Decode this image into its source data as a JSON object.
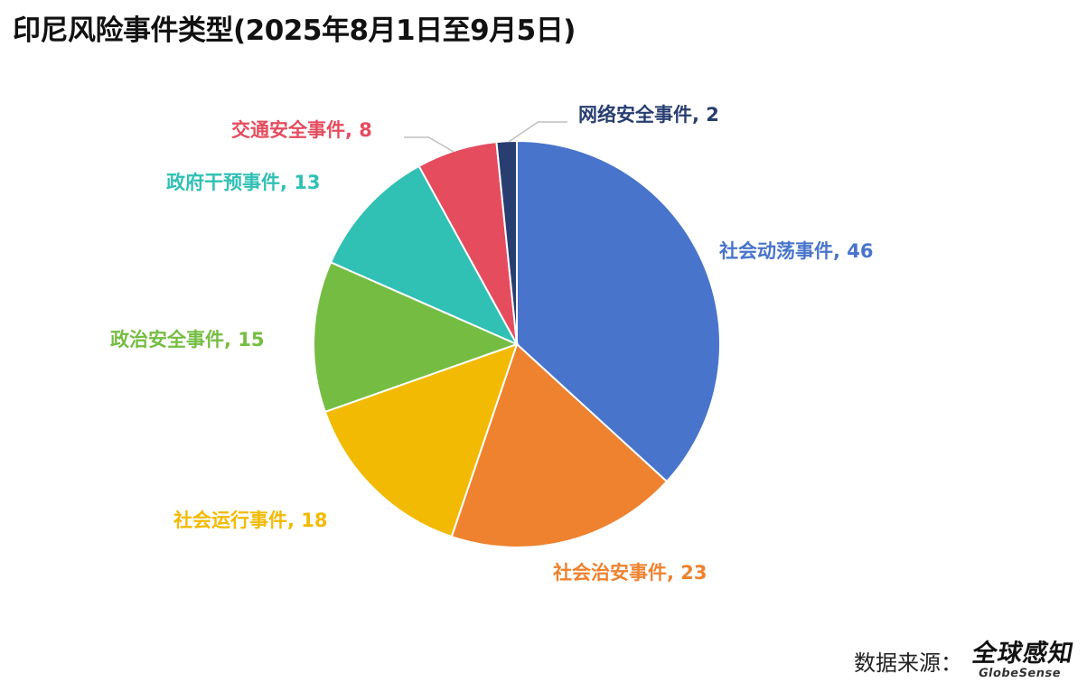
{
  "chart_data": {
    "type": "pie",
    "title": "印尼风险事件类型(2025年8月1日至9月5日)",
    "slices": [
      {
        "name": "社会动荡事件",
        "value": 46,
        "color": "#4874CB"
      },
      {
        "name": "社会治安事件",
        "value": 23,
        "color": "#EE822F"
      },
      {
        "name": "社会运行事件",
        "value": 18,
        "color": "#F2BA02"
      },
      {
        "name": "政治安全事件",
        "value": 15,
        "color": "#75BD42"
      },
      {
        "name": "政府干预事件",
        "value": 13,
        "color": "#30C0B4"
      },
      {
        "name": "交通安全事件",
        "value": 8,
        "color": "#E54C5E"
      },
      {
        "name": "网络安全事件",
        "value": 2,
        "color": "#283E70"
      }
    ],
    "label_format": "{name}, {value}",
    "legend": "none"
  },
  "source": {
    "label": "数据来源：",
    "logo_cn": "全球感知",
    "logo_en": "GlobeSense"
  }
}
